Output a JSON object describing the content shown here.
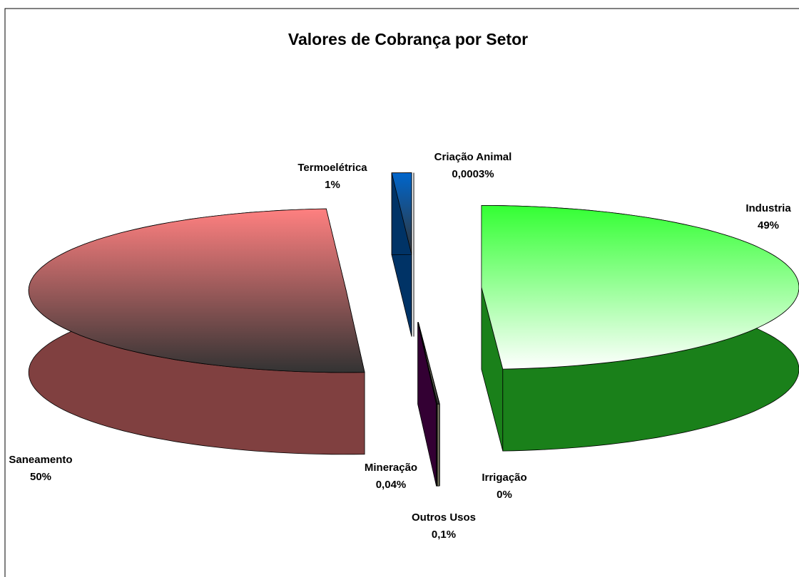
{
  "chart_data": {
    "type": "pie3d",
    "title": "Valores de Cobrança por Setor",
    "categories": [
      "Industria",
      "Irrigação",
      "Outros Usos",
      "Mineração",
      "Saneamento",
      "Termoelétrica",
      "Criação Animal"
    ],
    "values": [
      49,
      0,
      0.1,
      0.04,
      50,
      1,
      0.0003
    ],
    "value_labels": [
      "49%",
      "0%",
      "0,1%",
      "0,04%",
      "50%",
      "1%",
      "0,0003%"
    ],
    "colors": [
      "#33ff33",
      "#a0a0a0",
      "#ffffcc",
      "#660066",
      "#ff8080",
      "#0066cc",
      "#ccccff"
    ]
  }
}
